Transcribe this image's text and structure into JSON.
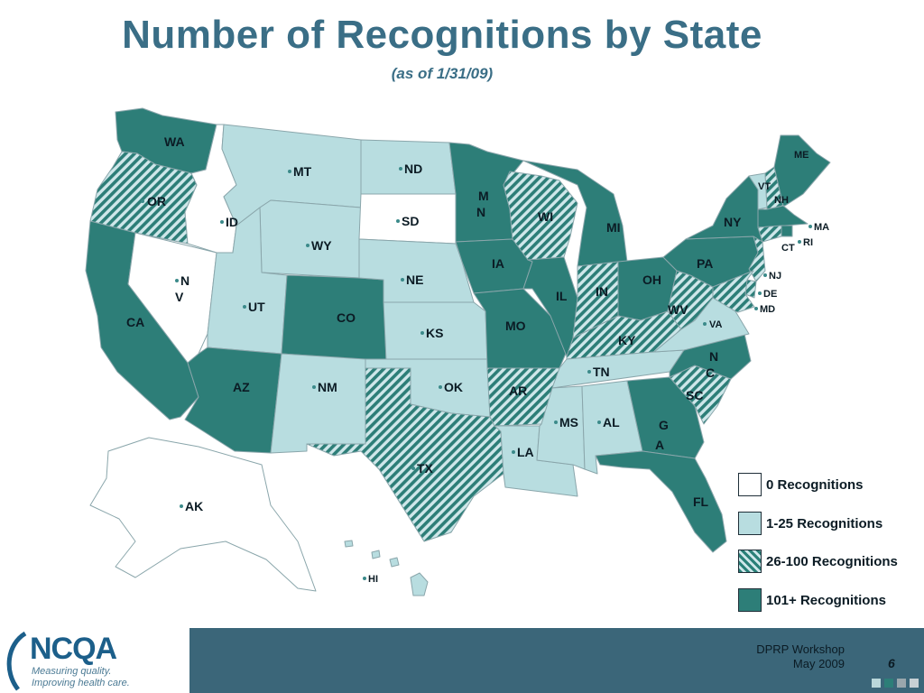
{
  "title": "Number of Recognitions by State",
  "subtitle": "(as of 1/31/09)",
  "colors": {
    "zero": "#ffffff",
    "low": "#b8dde0",
    "mid": "#2a8078",
    "high": "#2d7e78",
    "border": "#7d9aa0",
    "title": "#3a6e86",
    "footer": "#3b6679"
  },
  "legend": [
    {
      "label": "0 Recognitions",
      "category": "zero"
    },
    {
      "label": "1-25 Recognitions",
      "category": "low"
    },
    {
      "label": "26-100 Recognitions",
      "category": "mid"
    },
    {
      "label": "101+ Recognitions",
      "category": "high"
    }
  ],
  "state_labels": {
    "WA": "WA",
    "OR": "OR",
    "CA": "CA",
    "ID": "ID",
    "NV1": "N",
    "NV2": "V",
    "MT": "MT",
    "WY": "WY",
    "UT": "UT",
    "AZ": "AZ",
    "CO": "CO",
    "NM": "NM",
    "ND": "ND",
    "SD": "SD",
    "NE": "NE",
    "KS": "KS",
    "OK": "OK",
    "TX": "TX",
    "MN1": "M",
    "MN2": "N",
    "IA": "IA",
    "MO": "MO",
    "AR": "AR",
    "LA": "LA",
    "WI": "WI",
    "IL": "IL",
    "MI": "MI",
    "IN": "IN",
    "OH": "OH",
    "KY": "KY",
    "TN": "TN",
    "MS": "MS",
    "AL": "AL",
    "GA1": "G",
    "GA2": "A",
    "FL": "FL",
    "SC": "SC",
    "NC1": "N",
    "NC2": "C",
    "VA": "VA",
    "WV": "WV",
    "PA": "PA",
    "NY": "NY",
    "VT": "VT",
    "NH": "NH",
    "ME": "ME",
    "MA": "MA",
    "RI": "RI",
    "CT": "CT",
    "NJ": "NJ",
    "DE": "DE",
    "MD": "MD",
    "AK": "AK",
    "HI": "HI"
  },
  "states": [
    {
      "id": "WA",
      "category": "high"
    },
    {
      "id": "OR",
      "category": "mid"
    },
    {
      "id": "CA",
      "category": "high"
    },
    {
      "id": "ID",
      "category": "zero"
    },
    {
      "id": "NV",
      "category": "zero"
    },
    {
      "id": "MT",
      "category": "low"
    },
    {
      "id": "WY",
      "category": "low"
    },
    {
      "id": "UT",
      "category": "low"
    },
    {
      "id": "AZ",
      "category": "high"
    },
    {
      "id": "CO",
      "category": "high"
    },
    {
      "id": "NM",
      "category": "low"
    },
    {
      "id": "ND",
      "category": "low"
    },
    {
      "id": "SD",
      "category": "zero"
    },
    {
      "id": "NE",
      "category": "low"
    },
    {
      "id": "KS",
      "category": "low"
    },
    {
      "id": "OK",
      "category": "low"
    },
    {
      "id": "TX",
      "category": "mid"
    },
    {
      "id": "MN",
      "category": "high"
    },
    {
      "id": "IA",
      "category": "high"
    },
    {
      "id": "MO",
      "category": "high"
    },
    {
      "id": "AR",
      "category": "mid"
    },
    {
      "id": "LA",
      "category": "low"
    },
    {
      "id": "WI",
      "category": "mid"
    },
    {
      "id": "IL",
      "category": "high"
    },
    {
      "id": "MI",
      "category": "high"
    },
    {
      "id": "IN",
      "category": "mid"
    },
    {
      "id": "OH",
      "category": "high"
    },
    {
      "id": "KY",
      "category": "mid"
    },
    {
      "id": "TN",
      "category": "low"
    },
    {
      "id": "MS",
      "category": "low"
    },
    {
      "id": "AL",
      "category": "low"
    },
    {
      "id": "GA",
      "category": "high"
    },
    {
      "id": "FL",
      "category": "high"
    },
    {
      "id": "SC",
      "category": "mid"
    },
    {
      "id": "NC",
      "category": "high"
    },
    {
      "id": "VA",
      "category": "low"
    },
    {
      "id": "WV",
      "category": "mid"
    },
    {
      "id": "PA",
      "category": "high"
    },
    {
      "id": "NY",
      "category": "high"
    },
    {
      "id": "VT",
      "category": "low"
    },
    {
      "id": "NH",
      "category": "mid"
    },
    {
      "id": "ME",
      "category": "high"
    },
    {
      "id": "MA",
      "category": "high"
    },
    {
      "id": "RI",
      "category": "high"
    },
    {
      "id": "CT",
      "category": "mid"
    },
    {
      "id": "NJ",
      "category": "mid"
    },
    {
      "id": "DE",
      "category": "mid"
    },
    {
      "id": "MD",
      "category": "mid"
    },
    {
      "id": "AK",
      "category": "zero"
    },
    {
      "id": "HI",
      "category": "low"
    }
  ],
  "logo": {
    "word": "NCQA",
    "tagline_1": "Measuring quality.",
    "tagline_2": "Improving health care."
  },
  "footer": {
    "workshop": "DPRP Workshop",
    "date": "May 2009",
    "page_number": "6"
  }
}
